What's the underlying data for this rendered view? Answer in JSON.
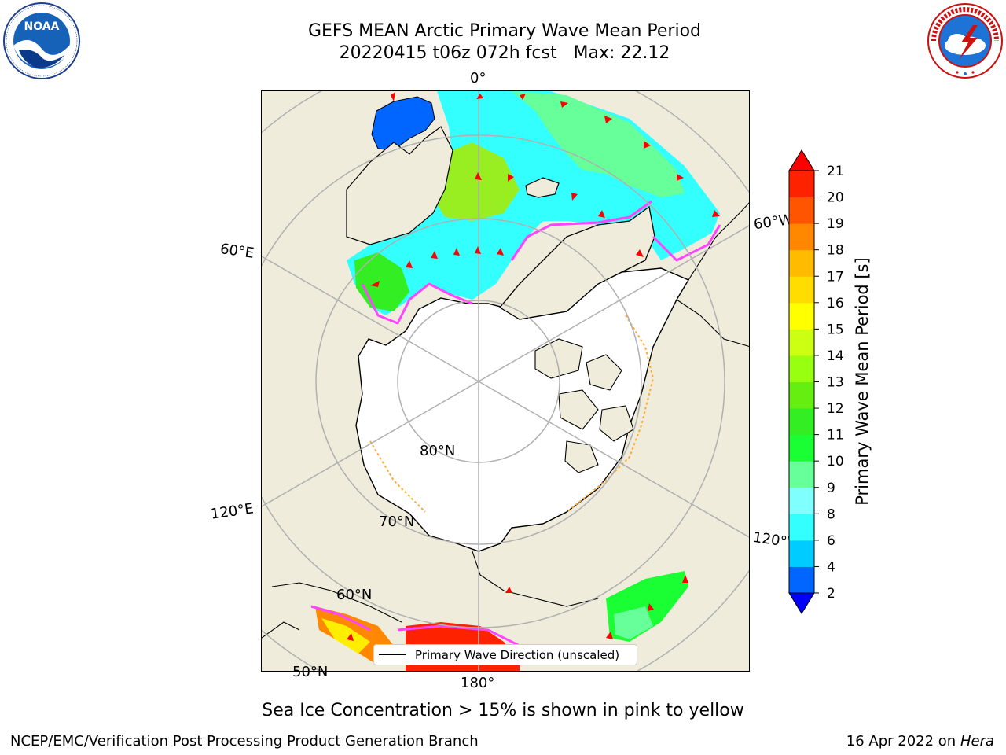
{
  "title": {
    "line1": "GEFS MEAN Arctic Primary Wave Mean Period",
    "line2": "20220415 t06z 072h fcst   Max: 22.12"
  },
  "logos": {
    "left": {
      "icon": "noaa-logo",
      "text": "NOAA"
    },
    "right": {
      "icon": "nws-logo",
      "ring_text": "NATIONAL WEATHER SERVICE"
    }
  },
  "map": {
    "projection": "north-polar-stereographic",
    "gridline_labels": {
      "lon_0": "0°",
      "lon_60e": "60°E",
      "lon_60w": "60°W",
      "lon_120e": "120°E",
      "lon_120w": "120°W",
      "lon_180": "180°",
      "lat_80n": "80°N",
      "lat_70n": "70°N",
      "lat_60n": "60°N",
      "lat_50n": "50°N"
    },
    "colors": {
      "land": "#efecdc",
      "ocean_ice": "#ffffff",
      "grid": "#b0b0b0",
      "coast": "#000000",
      "arrow": "#ff0000"
    },
    "legend": {
      "label": "Primary Wave Direction (unscaled)"
    }
  },
  "colorbar": {
    "label": "Primary Wave Mean Period [s]",
    "ticks": [
      "2",
      "4",
      "6",
      "8",
      "9",
      "10",
      "11",
      "12",
      "13",
      "14",
      "15",
      "16",
      "17",
      "18",
      "19",
      "20",
      "21"
    ],
    "bins": [
      {
        "lo": 2,
        "hi": 4,
        "color": "#0066ff"
      },
      {
        "lo": 4,
        "hi": 6,
        "color": "#00ccff"
      },
      {
        "lo": 6,
        "hi": 8,
        "color": "#33ffff"
      },
      {
        "lo": 8,
        "hi": 9,
        "color": "#80ffff"
      },
      {
        "lo": 9,
        "hi": 10,
        "color": "#66ff99"
      },
      {
        "lo": 10,
        "hi": 11,
        "color": "#1aff33"
      },
      {
        "lo": 11,
        "hi": 12,
        "color": "#33ee22"
      },
      {
        "lo": 12,
        "hi": 13,
        "color": "#66ee11"
      },
      {
        "lo": 13,
        "hi": 14,
        "color": "#99ff11"
      },
      {
        "lo": 14,
        "hi": 15,
        "color": "#ccff11"
      },
      {
        "lo": 15,
        "hi": 16,
        "color": "#ffff00"
      },
      {
        "lo": 16,
        "hi": 17,
        "color": "#ffdd00"
      },
      {
        "lo": 17,
        "hi": 18,
        "color": "#ffbb00"
      },
      {
        "lo": 18,
        "hi": 19,
        "color": "#ff8800"
      },
      {
        "lo": 19,
        "hi": 20,
        "color": "#ff5500"
      },
      {
        "lo": 20,
        "hi": 21,
        "color": "#ff2200"
      }
    ],
    "under_color": "#0000ff",
    "over_color": "#ff0000"
  },
  "subtitle_note": "Sea Ice Concentration > 15% is shown in pink to yellow",
  "footer": {
    "left": "NCEP/EMC/Verification Post Processing Product Generation Branch",
    "right_date": "16 Apr 2022 on ",
    "right_machine": "Hera"
  }
}
